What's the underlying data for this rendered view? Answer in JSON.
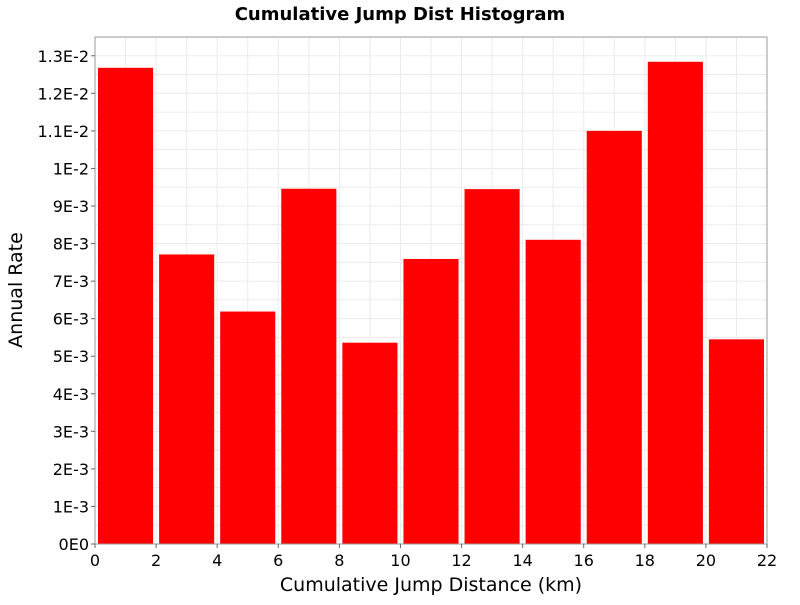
{
  "chart_data": {
    "type": "bar",
    "title": "Cumulative Jump Dist Histogram",
    "xlabel": "Cumulative Jump Distance (km)",
    "ylabel": "Annual Rate",
    "xlim": [
      0,
      22
    ],
    "ylim": [
      0,
      0.0135
    ],
    "grid": true,
    "bar_color": "#ff0000",
    "x_ticks": [
      {
        "value": 0,
        "label": "0"
      },
      {
        "value": 2,
        "label": "2"
      },
      {
        "value": 4,
        "label": "4"
      },
      {
        "value": 6,
        "label": "6"
      },
      {
        "value": 8,
        "label": "8"
      },
      {
        "value": 10,
        "label": "10"
      },
      {
        "value": 12,
        "label": "12"
      },
      {
        "value": 14,
        "label": "14"
      },
      {
        "value": 16,
        "label": "16"
      },
      {
        "value": 18,
        "label": "18"
      },
      {
        "value": 20,
        "label": "20"
      },
      {
        "value": 22,
        "label": "22"
      }
    ],
    "y_ticks": [
      {
        "value": 0,
        "label": "0E0"
      },
      {
        "value": 0.001,
        "label": "1E-3"
      },
      {
        "value": 0.002,
        "label": "2E-3"
      },
      {
        "value": 0.003,
        "label": "3E-3"
      },
      {
        "value": 0.004,
        "label": "4E-3"
      },
      {
        "value": 0.005,
        "label": "5E-3"
      },
      {
        "value": 0.006,
        "label": "6E-3"
      },
      {
        "value": 0.007,
        "label": "7E-3"
      },
      {
        "value": 0.008,
        "label": "8E-3"
      },
      {
        "value": 0.009,
        "label": "9E-3"
      },
      {
        "value": 0.01,
        "label": "1E-2"
      },
      {
        "value": 0.011,
        "label": "1.1E-2"
      },
      {
        "value": 0.012,
        "label": "1.2E-2"
      },
      {
        "value": 0.013,
        "label": "1.3E-2"
      }
    ],
    "bins": [
      {
        "x0": 0,
        "x1": 2,
        "value": 0.01268
      },
      {
        "x0": 2,
        "x1": 4,
        "value": 0.00771
      },
      {
        "x0": 4,
        "x1": 6,
        "value": 0.00619
      },
      {
        "x0": 6,
        "x1": 8,
        "value": 0.00946
      },
      {
        "x0": 8,
        "x1": 10,
        "value": 0.00536
      },
      {
        "x0": 10,
        "x1": 12,
        "value": 0.00759
      },
      {
        "x0": 12,
        "x1": 14,
        "value": 0.00945
      },
      {
        "x0": 14,
        "x1": 16,
        "value": 0.0081
      },
      {
        "x0": 16,
        "x1": 18,
        "value": 0.011
      },
      {
        "x0": 18,
        "x1": 20,
        "value": 0.01284
      },
      {
        "x0": 20,
        "x1": 22,
        "value": 0.00545
      }
    ]
  }
}
